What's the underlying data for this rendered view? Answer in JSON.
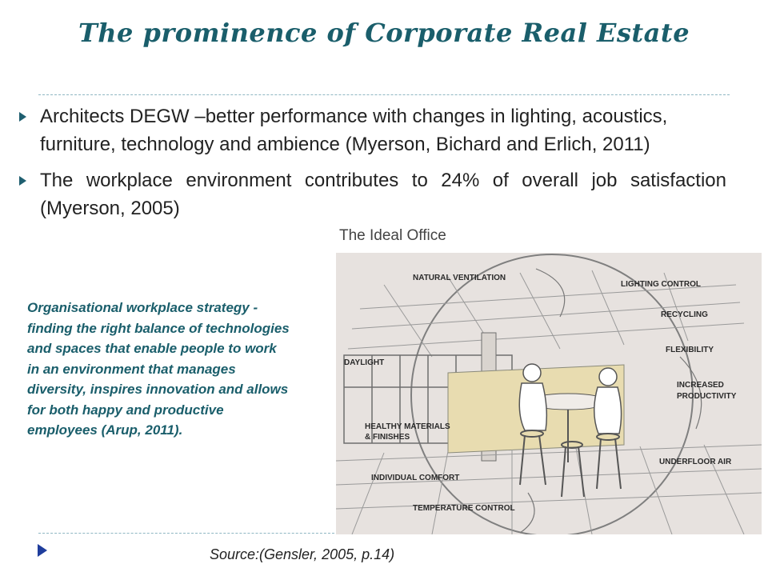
{
  "slide": {
    "title": "The prominence of Corporate Real Estate",
    "bullets": [
      "Architects DEGW –better performance with changes in lighting, acoustics, furniture, technology and ambience (Myerson, Bichard and Erlich, 2011)",
      "The workplace environment contributes to 24% of overall job satisfaction (Myerson, 2005)"
    ],
    "quote": "Organisational workplace strategy -finding the right balance of technologies and spaces that enable people to work in an environment that manages diversity, inspires innovation and allows for both happy and productive employees (Arup, 2011).",
    "source": "Source:(Gensler, 2005, p.14)"
  },
  "figure": {
    "title": "The Ideal Office",
    "labels": {
      "natural_ventilation": "NATURAL VENTILATION",
      "lighting_control": "LIGHTING CONTROL",
      "recycling": "RECYCLING",
      "flexibility": "FLEXIBILITY",
      "daylight": "DAYLIGHT",
      "increased_productivity_1": "INCREASED",
      "increased_productivity_2": "PRODUCTIVITY",
      "healthy_materials_1": "HEALTHY MATERIALS",
      "healthy_materials_2": "& FINISHES",
      "underfloor_air": "UNDERFLOOR AIR",
      "individual_comfort": "INDIVIDUAL COMFORT",
      "temperature_control": "TEMPERATURE CONTROL"
    }
  },
  "colors": {
    "title": "#1a5e6b",
    "quote": "#1a5e6b",
    "bullet_marker": "#1f5f70",
    "footer_marker": "#1f3d9c"
  }
}
